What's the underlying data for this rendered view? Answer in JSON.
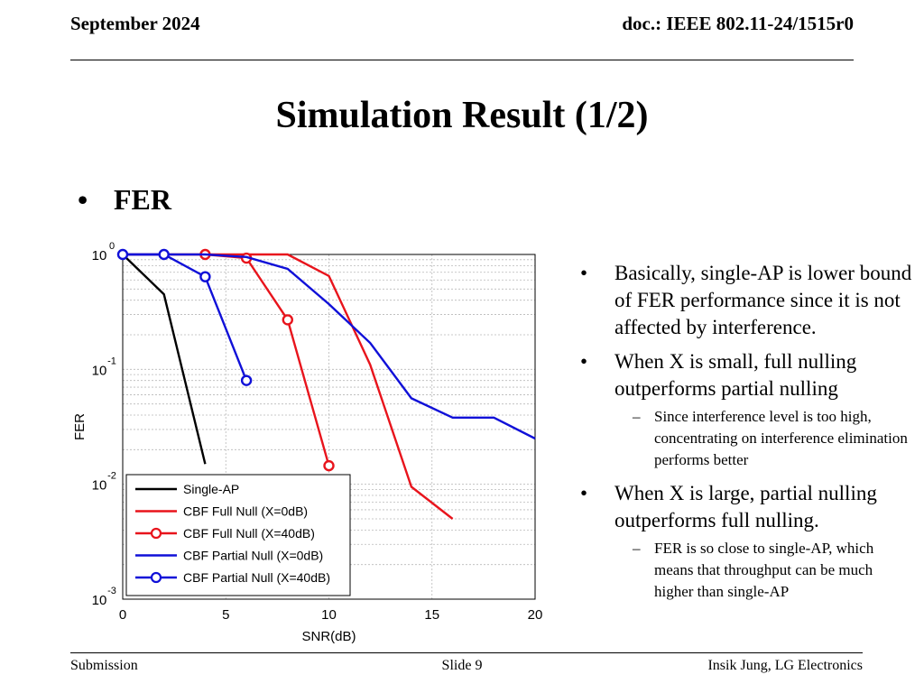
{
  "header": {
    "date": "September 2024",
    "doc_id": "doc.: IEEE 802.11-24/1515r0"
  },
  "slide": {
    "title": "Simulation Result (1/2)",
    "main_bullet": "FER",
    "bullet_char": "•",
    "dash_char": "–"
  },
  "notes": {
    "p1": "Basically, single-AP is lower bound of FER performance since it is not affected by interference.",
    "p2": "When X is small, full nulling outperforms partial nulling",
    "p2_sub": "Since interference level is too high, concentrating on interference elimination performs better",
    "p3": "When X is large, partial nulling outperforms full nulling.",
    "p3_sub": "FER is so close to single-AP, which means that throughput can be much higher than single-AP"
  },
  "footer": {
    "left": "Submission",
    "center": "Slide 9",
    "right": "Insik Jung, LG Electronics"
  },
  "chart_data": {
    "type": "line",
    "xlabel": "SNR(dB)",
    "ylabel": "FER",
    "xlim": [
      0,
      20
    ],
    "ylim": [
      0.001,
      1
    ],
    "yscale": "log",
    "xticks": [
      "0",
      "5",
      "10",
      "15",
      "20"
    ],
    "yticks": [
      {
        "base": "10",
        "exp": "0",
        "value": 1
      },
      {
        "base": "10",
        "exp": "-1",
        "value": 0.1
      },
      {
        "base": "10",
        "exp": "-2",
        "value": 0.01
      },
      {
        "base": "10",
        "exp": "-3",
        "value": 0.001
      }
    ],
    "grid": true,
    "legend_position": "bottom-left",
    "series": [
      {
        "name": "Single-AP",
        "color": "#000000",
        "marker": "none",
        "x": [
          0,
          2,
          4
        ],
        "y": [
          1.0,
          0.45,
          0.015
        ]
      },
      {
        "name": "CBF Full Null (X=0dB)",
        "color": "#e8141c",
        "marker": "none",
        "x": [
          0,
          2,
          4,
          6,
          8,
          10,
          12,
          14,
          16
        ],
        "y": [
          1.0,
          1.0,
          1.0,
          1.0,
          1.0,
          0.65,
          0.11,
          0.0095,
          0.005
        ]
      },
      {
        "name": "CBF Full Null (X=40dB)",
        "color": "#e8141c",
        "marker": "circle",
        "x": [
          4,
          6,
          8,
          10
        ],
        "y": [
          1.0,
          0.93,
          0.27,
          0.0145
        ]
      },
      {
        "name": "CBF Partial Null (X=0dB)",
        "color": "#1010d8",
        "marker": "none",
        "x": [
          0,
          2,
          4,
          6,
          8,
          10,
          12,
          14,
          16,
          18,
          20
        ],
        "y": [
          1.0,
          1.0,
          1.0,
          0.95,
          0.75,
          0.37,
          0.17,
          0.056,
          0.038,
          0.038,
          0.025
        ]
      },
      {
        "name": "CBF Partial Null (X=40dB)",
        "color": "#1010d8",
        "marker": "circle",
        "x": [
          0,
          2,
          4,
          6
        ],
        "y": [
          1.0,
          1.0,
          0.64,
          0.08
        ]
      }
    ]
  }
}
